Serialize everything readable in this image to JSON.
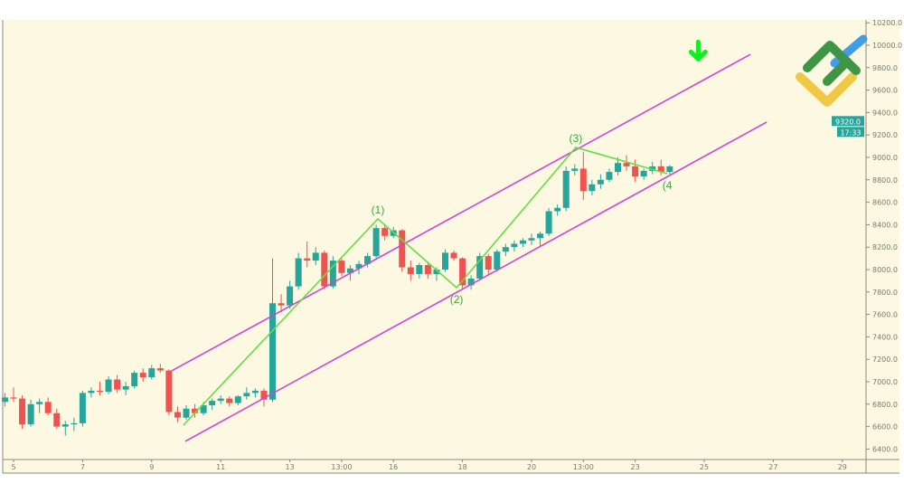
{
  "chart_data": {
    "type": "candlestick",
    "title": "",
    "xlabel": "",
    "ylabel": "",
    "ylim": [
      6240,
      10280
    ],
    "xlim": [
      4.7,
      30.1
    ],
    "grid": false,
    "x_ticks": [
      {
        "value": 5,
        "label": "5"
      },
      {
        "value": 7,
        "label": "7"
      },
      {
        "value": 9,
        "label": "9"
      },
      {
        "value": 11,
        "label": "11"
      },
      {
        "value": 13,
        "label": "13"
      },
      {
        "value": 14.5,
        "label": "13:00"
      },
      {
        "value": 16,
        "label": "16"
      },
      {
        "value": 18,
        "label": "18"
      },
      {
        "value": 20,
        "label": "20"
      },
      {
        "value": 21.5,
        "label": "13:00"
      },
      {
        "value": 23,
        "label": "23"
      },
      {
        "value": 25,
        "label": "25"
      },
      {
        "value": 27,
        "label": "27"
      },
      {
        "value": 29,
        "label": "29"
      }
    ],
    "y_ticks": [
      "6400.0",
      "6600.0",
      "6800.0",
      "7000.0",
      "7200.0",
      "7400.0",
      "7600.0",
      "7800.0",
      "8000.0",
      "8200.0",
      "8400.0",
      "8600.0",
      "8800.0",
      "9000.0",
      "9200.0",
      "9400.0",
      "9600.0",
      "9800.0",
      "10000.0",
      "10200.0"
    ],
    "candle_fields": [
      "x",
      "open",
      "high",
      "low",
      "close"
    ],
    "candles": [
      [
        4.75,
        6820,
        6900,
        6780,
        6860
      ],
      [
        5.0,
        6860,
        6950,
        6820,
        6850
      ],
      [
        5.25,
        6850,
        6880,
        6580,
        6620
      ],
      [
        5.5,
        6620,
        6840,
        6600,
        6800
      ],
      [
        5.75,
        6800,
        6850,
        6720,
        6820
      ],
      [
        6.0,
        6820,
        6860,
        6700,
        6720
      ],
      [
        6.25,
        6720,
        6760,
        6580,
        6600
      ],
      [
        6.5,
        6600,
        6650,
        6520,
        6620
      ],
      [
        6.75,
        6620,
        6680,
        6560,
        6630
      ],
      [
        7.0,
        6630,
        6920,
        6600,
        6900
      ],
      [
        7.25,
        6900,
        6950,
        6860,
        6920
      ],
      [
        7.5,
        6920,
        7000,
        6880,
        6910
      ],
      [
        7.75,
        6910,
        7050,
        6890,
        7020
      ],
      [
        8.0,
        7020,
        7060,
        6900,
        6930
      ],
      [
        8.25,
        6930,
        7000,
        6880,
        6960
      ],
      [
        8.5,
        6960,
        7100,
        6940,
        7080
      ],
      [
        8.75,
        7080,
        7120,
        7000,
        7040
      ],
      [
        9.0,
        7040,
        7150,
        7020,
        7120
      ],
      [
        9.25,
        7120,
        7160,
        7080,
        7100
      ],
      [
        9.5,
        7100,
        7110,
        6700,
        6730
      ],
      [
        9.75,
        6730,
        6780,
        6640,
        6680
      ],
      [
        10.0,
        6680,
        6790,
        6660,
        6760
      ],
      [
        10.25,
        6760,
        6800,
        6680,
        6720
      ],
      [
        10.5,
        6720,
        6820,
        6700,
        6790
      ],
      [
        10.75,
        6790,
        6850,
        6750,
        6830
      ],
      [
        11.0,
        6830,
        6880,
        6800,
        6850
      ],
      [
        11.25,
        6850,
        6870,
        6780,
        6810
      ],
      [
        11.5,
        6810,
        6880,
        6790,
        6870
      ],
      [
        11.75,
        6870,
        6950,
        6840,
        6900
      ],
      [
        12.0,
        6900,
        6940,
        6860,
        6920
      ],
      [
        12.25,
        6920,
        6940,
        6780,
        6840
      ],
      [
        12.5,
        6840,
        8100,
        6820,
        7700
      ],
      [
        12.75,
        7700,
        7780,
        7620,
        7680
      ],
      [
        13.0,
        7680,
        7900,
        7650,
        7850
      ],
      [
        13.25,
        7850,
        8150,
        7820,
        8100
      ],
      [
        13.5,
        8100,
        8250,
        8020,
        8080
      ],
      [
        13.75,
        8080,
        8200,
        8040,
        8150
      ],
      [
        14.0,
        8150,
        8170,
        7820,
        7850
      ],
      [
        14.25,
        7850,
        8120,
        7830,
        8080
      ],
      [
        14.5,
        8080,
        8100,
        7940,
        7970
      ],
      [
        14.75,
        7970,
        8040,
        7900,
        8010
      ],
      [
        15.0,
        8010,
        8080,
        7960,
        8050
      ],
      [
        15.25,
        8050,
        8150,
        8020,
        8120
      ],
      [
        15.5,
        8120,
        8400,
        8100,
        8370
      ],
      [
        15.75,
        8370,
        8400,
        8260,
        8300
      ],
      [
        16.0,
        8300,
        8380,
        8280,
        8350
      ],
      [
        16.25,
        8350,
        8360,
        7980,
        8020
      ],
      [
        16.5,
        8020,
        8080,
        7900,
        7960
      ],
      [
        16.75,
        7960,
        8060,
        7920,
        8040
      ],
      [
        17.0,
        8040,
        8070,
        7920,
        7960
      ],
      [
        17.25,
        7960,
        8020,
        7900,
        8000
      ],
      [
        17.5,
        8000,
        8180,
        7980,
        8150
      ],
      [
        17.75,
        8150,
        8170,
        8080,
        8100
      ],
      [
        18.0,
        8100,
        8110,
        7830,
        7860
      ],
      [
        18.25,
        7860,
        7950,
        7820,
        7920
      ],
      [
        18.5,
        7920,
        8150,
        7900,
        8120
      ],
      [
        18.75,
        8120,
        8140,
        7950,
        8000
      ],
      [
        19.0,
        8000,
        8180,
        7980,
        8160
      ],
      [
        19.25,
        8160,
        8230,
        8120,
        8200
      ],
      [
        19.5,
        8200,
        8260,
        8160,
        8230
      ],
      [
        19.75,
        8230,
        8280,
        8200,
        8260
      ],
      [
        20.0,
        8260,
        8320,
        8220,
        8280
      ],
      [
        20.25,
        8280,
        8340,
        8200,
        8320
      ],
      [
        20.5,
        8320,
        8550,
        8300,
        8520
      ],
      [
        20.75,
        8520,
        8580,
        8480,
        8550
      ],
      [
        21.0,
        8550,
        8920,
        8520,
        8880
      ],
      [
        21.25,
        8880,
        8940,
        8840,
        8900
      ],
      [
        21.5,
        8900,
        9050,
        8620,
        8700
      ],
      [
        21.75,
        8700,
        8800,
        8660,
        8760
      ],
      [
        22.0,
        8760,
        8850,
        8720,
        8800
      ],
      [
        22.25,
        8800,
        8900,
        8780,
        8870
      ],
      [
        22.5,
        8870,
        9000,
        8840,
        8950
      ],
      [
        22.75,
        8950,
        9020,
        8880,
        8920
      ],
      [
        23.0,
        8920,
        8980,
        8780,
        8830
      ],
      [
        23.25,
        8830,
        8900,
        8800,
        8880
      ],
      [
        23.5,
        8880,
        8960,
        8850,
        8920
      ],
      [
        23.75,
        8920,
        8980,
        8840,
        8870
      ],
      [
        24.0,
        8870,
        8930,
        8850,
        8920
      ]
    ],
    "channel": {
      "upper": [
        [
          9.58,
          7097
        ],
        [
          26.34,
          9919
        ]
      ],
      "lower": [
        [
          9.97,
          6468
        ],
        [
          26.81,
          9315
        ]
      ]
    },
    "wave": {
      "points": [
        [
          9.92,
          6613
        ],
        [
          15.55,
          8452
        ],
        [
          17.83,
          7839
        ],
        [
          21.28,
          9089
        ],
        [
          23.93,
          8855
        ]
      ],
      "labels": [
        {
          "text": "(1)",
          "x": 15.55,
          "y": 8452,
          "pos": "above"
        },
        {
          "text": "(2)",
          "x": 17.83,
          "y": 7839,
          "pos": "below"
        },
        {
          "text": "(3)",
          "x": 21.28,
          "y": 9089,
          "pos": "above"
        },
        {
          "text": "(4",
          "x": 23.93,
          "y": 8855,
          "pos": "below"
        }
      ]
    },
    "current_price": {
      "label": "9320.0",
      "value": 9320,
      "countdown": "17:33"
    },
    "signal_arrow": {
      "direction": "down",
      "x": 24.8,
      "y": 9900
    },
    "colors": {
      "background": "#fdf8e2",
      "up": "#26a69a",
      "down": "#ef5350",
      "channel": "#cc44dd",
      "wave": "#66dd44",
      "arrow": "#11ee22",
      "price_tag": "#26a69a"
    }
  }
}
